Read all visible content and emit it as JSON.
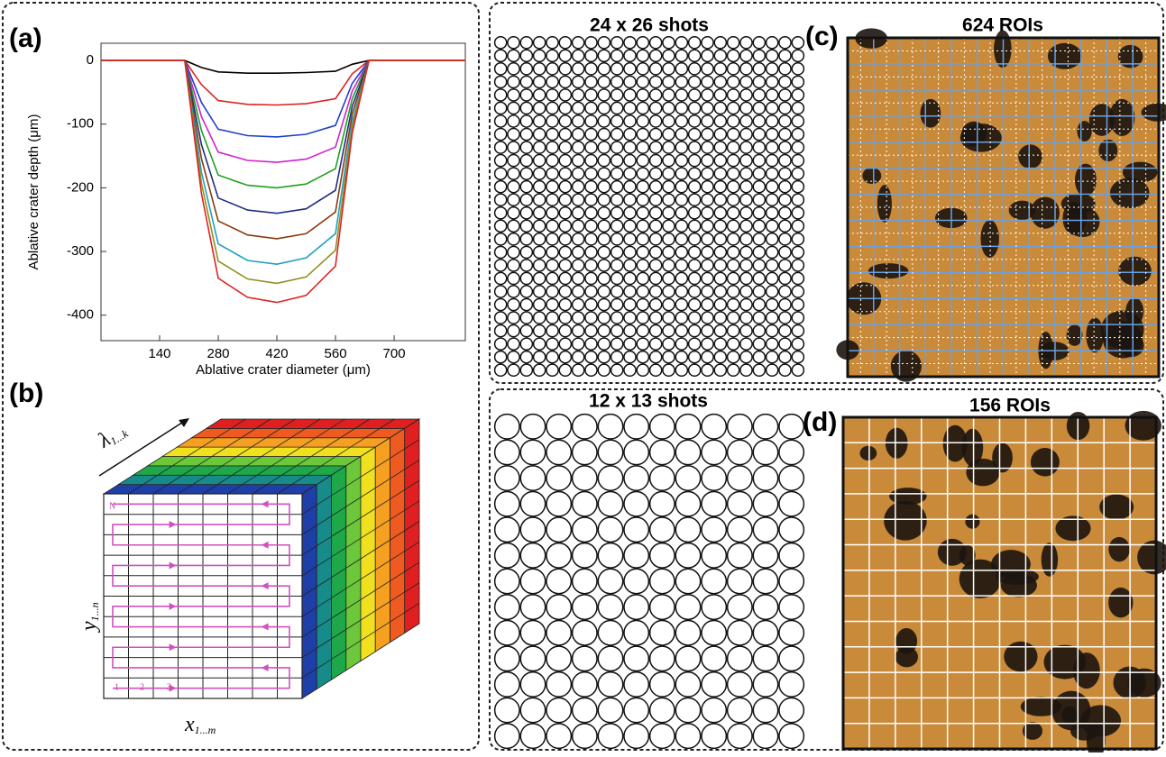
{
  "chart_data": {
    "type": "line",
    "panel_label": "(a)",
    "x_label": "Ablative crater diameter (μm)",
    "y_label": "Ablative crater depth (μm)",
    "x": [
      0,
      200,
      240,
      280,
      350,
      420,
      490,
      560,
      600,
      640,
      870
    ],
    "xlim": [
      0,
      870
    ],
    "xticks": [
      140,
      280,
      420,
      560,
      700
    ],
    "ylim": [
      -440,
      27
    ],
    "yticks": [
      0,
      -100,
      -200,
      -300,
      -400
    ],
    "series": [
      {
        "color": "#000000",
        "values": [
          0,
          0,
          -11,
          -18,
          -20,
          -20,
          -19,
          -17,
          -6,
          0,
          0
        ]
      },
      {
        "color": "#e02020",
        "values": [
          0,
          0,
          -38,
          -63,
          -69,
          -70,
          -68,
          -60,
          -21,
          0,
          0
        ]
      },
      {
        "color": "#2040d0",
        "values": [
          0,
          0,
          -66,
          -108,
          -118,
          -120,
          -116,
          -102,
          -36,
          0,
          0
        ]
      },
      {
        "color": "#d020d0",
        "values": [
          0,
          0,
          -88,
          -144,
          -157,
          -160,
          -155,
          -136,
          -48,
          0,
          0
        ]
      },
      {
        "color": "#20a020",
        "values": [
          0,
          0,
          -110,
          -180,
          -196,
          -200,
          -194,
          -170,
          -60,
          0,
          0
        ]
      },
      {
        "color": "#203080",
        "values": [
          0,
          0,
          -132,
          -216,
          -235,
          -240,
          -233,
          -204,
          -72,
          0,
          0
        ]
      },
      {
        "color": "#8a3a10",
        "values": [
          0,
          0,
          -154,
          -252,
          -274,
          -280,
          -272,
          -238,
          -84,
          0,
          0
        ]
      },
      {
        "color": "#20a0c0",
        "values": [
          0,
          0,
          -176,
          -288,
          -314,
          -320,
          -310,
          -272,
          -96,
          0,
          0
        ]
      },
      {
        "color": "#909020",
        "values": [
          0,
          0,
          -193,
          -315,
          -343,
          -350,
          -340,
          -298,
          -105,
          0,
          0
        ]
      },
      {
        "color": "#e02020",
        "values": [
          0,
          0,
          -209,
          -342,
          -372,
          -380,
          -369,
          -323,
          -114,
          0,
          0
        ]
      }
    ]
  },
  "cube": {
    "panel_label": "(b)",
    "lambda": {
      "symbol": "λ",
      "subscript": "1...k"
    },
    "y_axis": {
      "symbol": "y",
      "subscript": "1...n"
    },
    "x_axis": {
      "symbol": "x",
      "subscript": "1...m"
    },
    "path_labels": [
      "N",
      "1",
      "2",
      "3"
    ]
  },
  "shot_grids": [
    {
      "title": "24 x 26 shots"
    },
    {
      "title": "12 x 13 shots"
    }
  ],
  "roi_images": [
    {
      "panel_label": "(c)",
      "title": "624 ROIs"
    },
    {
      "panel_label": "(d)",
      "title": "156 ROIs"
    }
  ]
}
